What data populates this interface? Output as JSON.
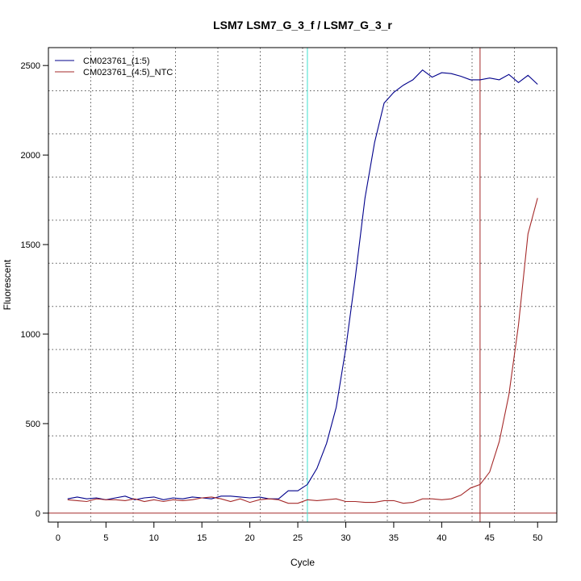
{
  "chart_data": {
    "type": "line",
    "title": "LSM7  LSM7_G_3_f / LSM7_G_3_r",
    "xlabel": "Cycle",
    "ylabel": "Fluorescent",
    "xlim": [
      -1,
      52
    ],
    "ylim": [
      -50,
      2600
    ],
    "x_ticks": [
      0,
      5,
      10,
      15,
      20,
      25,
      30,
      35,
      40,
      45,
      50
    ],
    "y_ticks": [
      0,
      500,
      1000,
      1500,
      2000,
      2500
    ],
    "grid": true,
    "grid_style": "dotted",
    "legend_position": "top-left",
    "threshold_line": {
      "y": 0,
      "color": "#a52a2a"
    },
    "vertical_markers": [
      {
        "x": 26,
        "color": "#40e0d0"
      },
      {
        "x": 44,
        "color": "#a52a2a"
      }
    ],
    "series": [
      {
        "name": "CM023761_(1:5)",
        "color": "#00008b",
        "x": [
          1,
          2,
          3,
          4,
          5,
          6,
          7,
          8,
          9,
          10,
          11,
          12,
          13,
          14,
          15,
          16,
          17,
          18,
          19,
          20,
          21,
          22,
          23,
          24,
          25,
          26,
          27,
          28,
          29,
          30,
          31,
          32,
          33,
          34,
          35,
          36,
          37,
          38,
          39,
          40,
          41,
          42,
          43,
          44,
          45,
          46,
          47,
          48,
          49,
          50
        ],
        "values": [
          80,
          90,
          80,
          85,
          75,
          85,
          95,
          75,
          85,
          90,
          75,
          85,
          80,
          90,
          85,
          80,
          95,
          95,
          90,
          85,
          90,
          80,
          80,
          125,
          125,
          160,
          250,
          390,
          590,
          920,
          1320,
          1760,
          2070,
          2290,
          2350,
          2390,
          2420,
          2475,
          2435,
          2460,
          2455,
          2440,
          2420,
          2420,
          2430,
          2420,
          2450,
          2405,
          2445,
          2395
        ]
      },
      {
        "name": "CM023761_(4:5)_NTC",
        "color": "#a52a2a",
        "x": [
          1,
          2,
          3,
          4,
          5,
          6,
          7,
          8,
          9,
          10,
          11,
          12,
          13,
          14,
          15,
          16,
          17,
          18,
          19,
          20,
          21,
          22,
          23,
          24,
          25,
          26,
          27,
          28,
          29,
          30,
          31,
          32,
          33,
          34,
          35,
          36,
          37,
          38,
          39,
          40,
          41,
          42,
          43,
          44,
          45,
          46,
          47,
          48,
          49,
          50
        ],
        "values": [
          75,
          70,
          65,
          80,
          75,
          75,
          70,
          80,
          65,
          75,
          65,
          75,
          70,
          75,
          85,
          90,
          80,
          65,
          80,
          60,
          75,
          80,
          75,
          55,
          55,
          75,
          70,
          75,
          80,
          65,
          65,
          60,
          60,
          70,
          70,
          55,
          60,
          80,
          80,
          75,
          80,
          100,
          140,
          160,
          230,
          400,
          660,
          1050,
          1560,
          1760
        ]
      }
    ]
  }
}
